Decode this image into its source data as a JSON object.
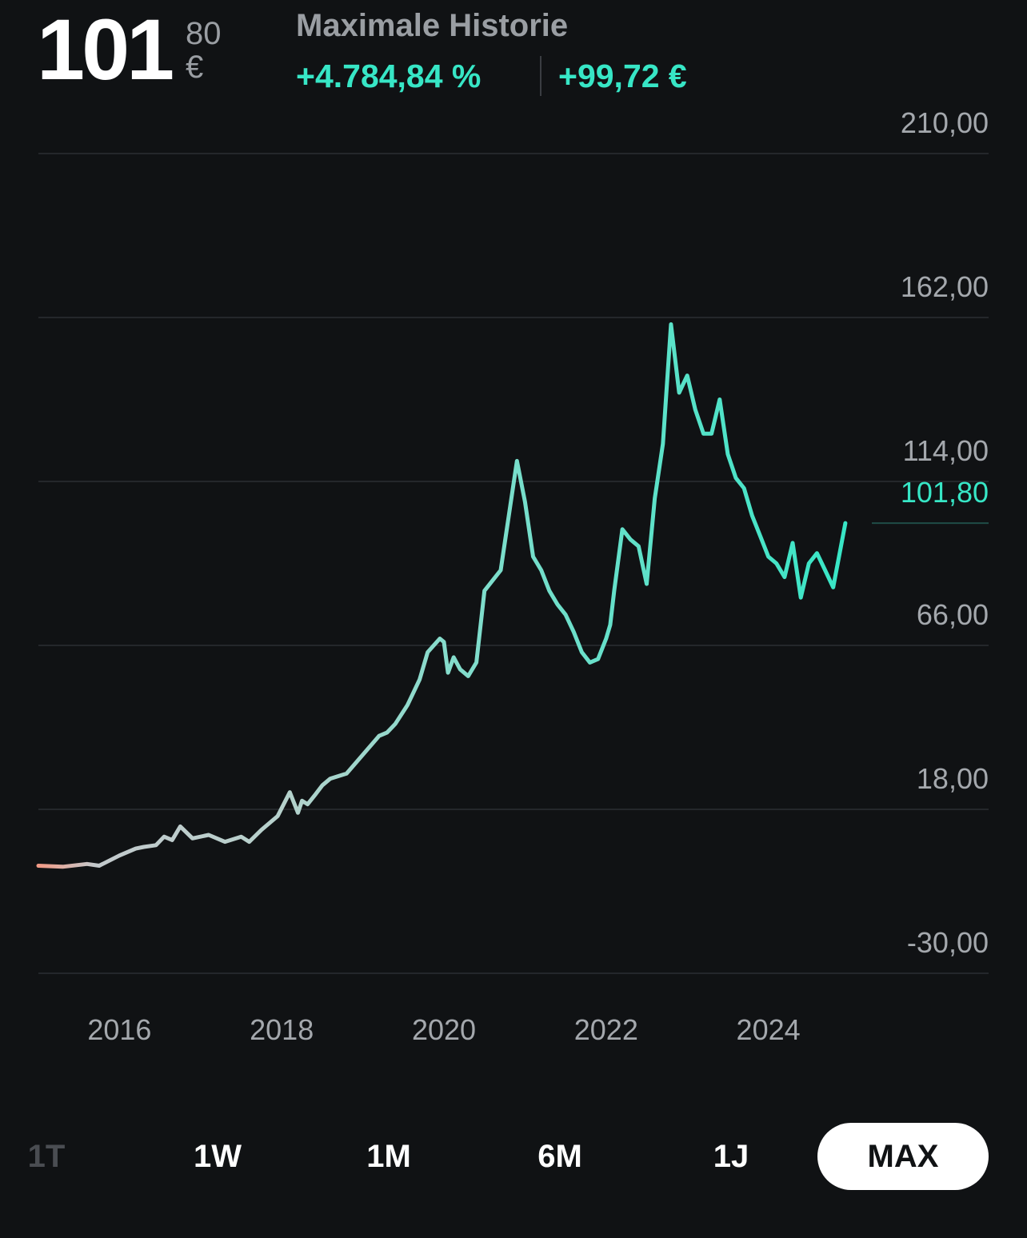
{
  "header": {
    "price_int": "101",
    "price_dec": "80",
    "currency": "€",
    "period_label": "Maximale Historie",
    "change_pct": "+4.784,84 %",
    "change_abs": "+99,72 €"
  },
  "colors": {
    "background": "#101214",
    "accent": "#37e6c6",
    "negative_start": "#f29a86",
    "grid": "#24272b"
  },
  "chart_data": {
    "type": "line",
    "title": "",
    "xlabel": "",
    "ylabel": "",
    "y_ticks": [
      "210,00",
      "162,00",
      "114,00",
      "66,00",
      "18,00",
      "-30,00"
    ],
    "y_tick_values": [
      210,
      162,
      114,
      66,
      18,
      -30
    ],
    "ylim": [
      -30,
      210
    ],
    "current_value_label": "101,80",
    "current_value": 101.8,
    "x_ticks": [
      "2016",
      "2018",
      "2020",
      "2022",
      "2024"
    ],
    "x_tick_values": [
      2016,
      2018,
      2020,
      2022,
      2024
    ],
    "xlim": [
      2015.0,
      2025.0
    ],
    "grid": true,
    "series": [
      {
        "x": [
          2015.0,
          2015.3,
          2015.6,
          2015.75,
          2016.0,
          2016.2,
          2016.3,
          2016.45,
          2016.55,
          2016.65,
          2016.75,
          2016.9,
          2017.1,
          2017.3,
          2017.5,
          2017.6,
          2017.75,
          2017.95,
          2018.1,
          2018.2,
          2018.25,
          2018.32,
          2018.42,
          2018.5,
          2018.6,
          2018.8,
          2019.0,
          2019.2,
          2019.3,
          2019.4,
          2019.55,
          2019.7,
          2019.8,
          2019.95,
          2020.0,
          2020.05,
          2020.12,
          2020.2,
          2020.3,
          2020.4,
          2020.5,
          2020.7,
          2020.9,
          2021.0,
          2021.1,
          2021.2,
          2021.3,
          2021.4,
          2021.5,
          2021.6,
          2021.7,
          2021.8,
          2021.9,
          2022.0,
          2022.05,
          2022.1,
          2022.2,
          2022.3,
          2022.4,
          2022.5,
          2022.6,
          2022.7,
          2022.8,
          2022.9,
          2023.0,
          2023.1,
          2023.2,
          2023.3,
          2023.4,
          2023.5,
          2023.6,
          2023.7,
          2023.8,
          2023.9,
          2024.0,
          2024.1,
          2024.2,
          2024.3,
          2024.4,
          2024.5,
          2024.6,
          2024.7,
          2024.8,
          2024.95
        ],
        "y": [
          1.5,
          1.2,
          2.0,
          1.5,
          4.5,
          6.5,
          7.0,
          7.5,
          10.0,
          9.0,
          13.0,
          9.5,
          10.5,
          8.5,
          10.0,
          8.5,
          12.0,
          16.0,
          23.0,
          17.0,
          20.5,
          19.5,
          22.5,
          25.0,
          27.0,
          28.5,
          34.0,
          39.5,
          40.5,
          43.0,
          48.5,
          56.0,
          64.0,
          68.0,
          67.0,
          58.0,
          62.5,
          59.0,
          57.0,
          61.0,
          82.0,
          88.0,
          120.0,
          108.0,
          92.0,
          88.0,
          82.0,
          78.0,
          75.0,
          70.0,
          64.0,
          61.0,
          62.0,
          68.0,
          72.0,
          82.0,
          100.0,
          97.0,
          95.0,
          84.0,
          109.0,
          125.0,
          160.0,
          140.0,
          145.0,
          135.0,
          128.0,
          128.0,
          138.0,
          122.0,
          115.0,
          112.0,
          104.0,
          98.0,
          92.0,
          90.0,
          86.0,
          96.0,
          80.0,
          90.0,
          93.0,
          88.0,
          83.0,
          101.8
        ]
      }
    ]
  },
  "ranges": {
    "items": [
      "1T",
      "1W",
      "1M",
      "6M",
      "1J",
      "MAX"
    ],
    "active": "MAX",
    "disabled": [
      "1T"
    ]
  }
}
